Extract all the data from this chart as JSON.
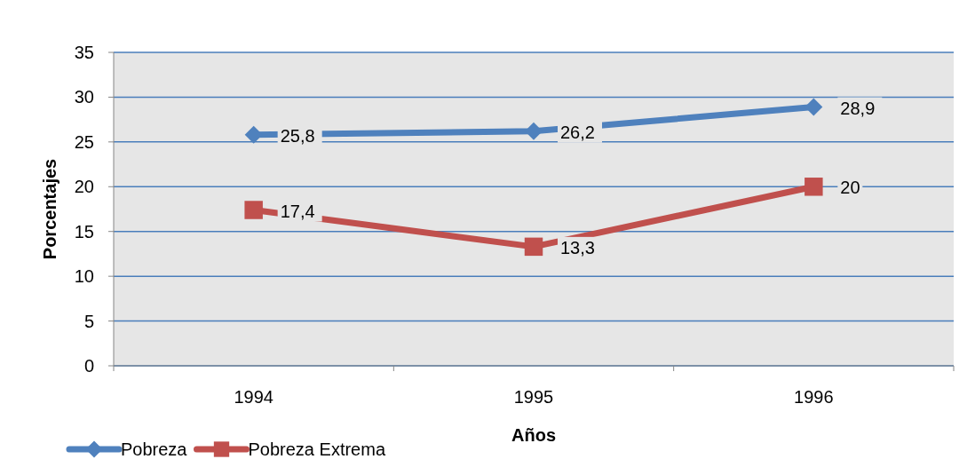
{
  "chart_data": {
    "type": "line",
    "xlabel": "Años",
    "ylabel": "Porcentajes",
    "categories": [
      "1994",
      "1995",
      "1996"
    ],
    "series": [
      {
        "name": "Pobreza",
        "color": "#4f81bd",
        "marker": "diamond",
        "values": [
          25.8,
          26.2,
          28.9
        ],
        "value_labels": [
          "25,8",
          "26,2",
          "28,9"
        ]
      },
      {
        "name": "Pobreza Extrema",
        "color": "#c0504d",
        "marker": "square",
        "values": [
          17.4,
          13.3,
          20
        ],
        "value_labels": [
          "17,4",
          "13,3",
          "20"
        ]
      }
    ],
    "ylim": [
      0,
      35
    ],
    "yticks": [
      0,
      5,
      10,
      15,
      20,
      25,
      30,
      35
    ],
    "grid": "y",
    "legend": "bottom"
  }
}
